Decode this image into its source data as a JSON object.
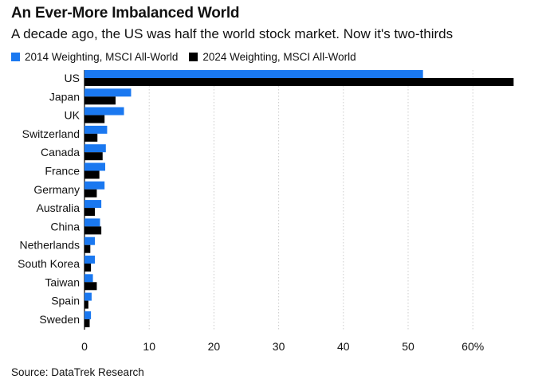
{
  "colors": {
    "series_2014": "#1a78f0",
    "series_2024": "#000000",
    "grid": "#cccccc",
    "axis": "#000000"
  },
  "title": "An Ever-More Imbalanced World",
  "subtitle": "A decade ago, the US was half the world stock market. Now it's two-thirds",
  "source": "Source: DataTrek Research",
  "chart_data": {
    "type": "bar",
    "orientation": "horizontal",
    "title": "An Ever-More Imbalanced World",
    "subtitle": "A decade ago, the US was half the world stock market. Now it's two-thirds",
    "categories": [
      "US",
      "Japan",
      "UK",
      "Switzerland",
      "Canada",
      "France",
      "Germany",
      "Australia",
      "China",
      "Netherlands",
      "South Korea",
      "Taiwan",
      "Spain",
      "Sweden"
    ],
    "series": [
      {
        "name": "2014 Weighting, MSCI All-World",
        "values": [
          52.3,
          7.2,
          6.1,
          3.5,
          3.3,
          3.2,
          3.1,
          2.6,
          2.4,
          1.6,
          1.6,
          1.3,
          1.1,
          1.0
        ]
      },
      {
        "name": "2024 Weighting, MSCI All-World",
        "values": [
          66.3,
          4.8,
          3.1,
          2.0,
          2.8,
          2.3,
          1.9,
          1.6,
          2.6,
          0.9,
          1.0,
          1.9,
          0.6,
          0.8
        ]
      }
    ],
    "xlim": [
      0,
      66
    ],
    "xticks": [
      0,
      10,
      20,
      30,
      40,
      50,
      60
    ],
    "xtick_labels": [
      "0",
      "10",
      "20",
      "30",
      "40",
      "50",
      "60%"
    ],
    "grid": "vertical dashed",
    "legend_position": "top-left"
  }
}
